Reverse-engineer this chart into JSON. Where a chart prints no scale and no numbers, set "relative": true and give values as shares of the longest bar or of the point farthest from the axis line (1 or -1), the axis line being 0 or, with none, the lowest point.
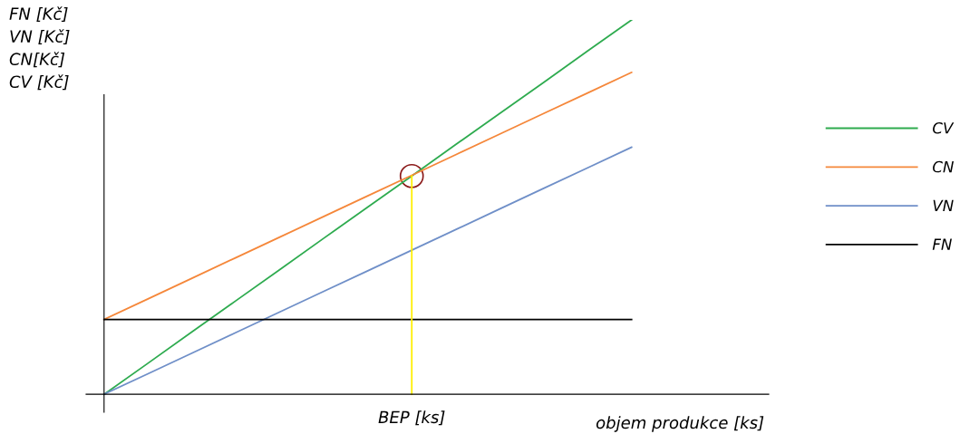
{
  "chart_data": {
    "type": "line",
    "relative": true,
    "ylabel": "FN [Kč]\nVN [Kč]\nCN[Kč]\nCV [Kč]",
    "xlabel": "objem produkce [ks]",
    "categories": [
      null,
      null,
      null,
      null,
      null,
      null,
      null,
      null,
      null,
      null,
      null,
      null,
      null
    ],
    "annotations": [
      "BEP [ks]"
    ],
    "legend": "right",
    "marker": "none",
    "line_style": "solid",
    "series": [
      {
        "name": "CV",
        "color": "#2eab4f",
        "values": [
          0,
          0.083,
          0.167,
          0.25,
          0.333,
          0.417,
          0.5,
          0.583,
          0.667,
          0.75,
          0.833,
          0.917,
          1
        ]
      },
      {
        "name": "CN",
        "color": "#f5873a",
        "values": [
          0.2,
          0.255,
          0.31,
          0.365,
          0.42,
          0.475,
          0.53,
          0.585,
          0.64,
          0.695,
          0.75,
          0.805,
          0.86
        ]
      },
      {
        "name": "VN",
        "color": "#6f8fc8",
        "values": [
          0,
          0.055,
          0.11,
          0.165,
          0.22,
          0.275,
          0.33,
          0.385,
          0.44,
          0.495,
          0.55,
          0.605,
          0.66
        ]
      },
      {
        "name": "FN",
        "color": "#000000",
        "values": [
          0.2,
          0.2,
          0.2,
          0.2,
          0.2,
          0.2,
          0.2,
          0.2,
          0.2,
          0.2,
          0.2,
          0.2,
          0.2
        ]
      }
    ]
  }
}
